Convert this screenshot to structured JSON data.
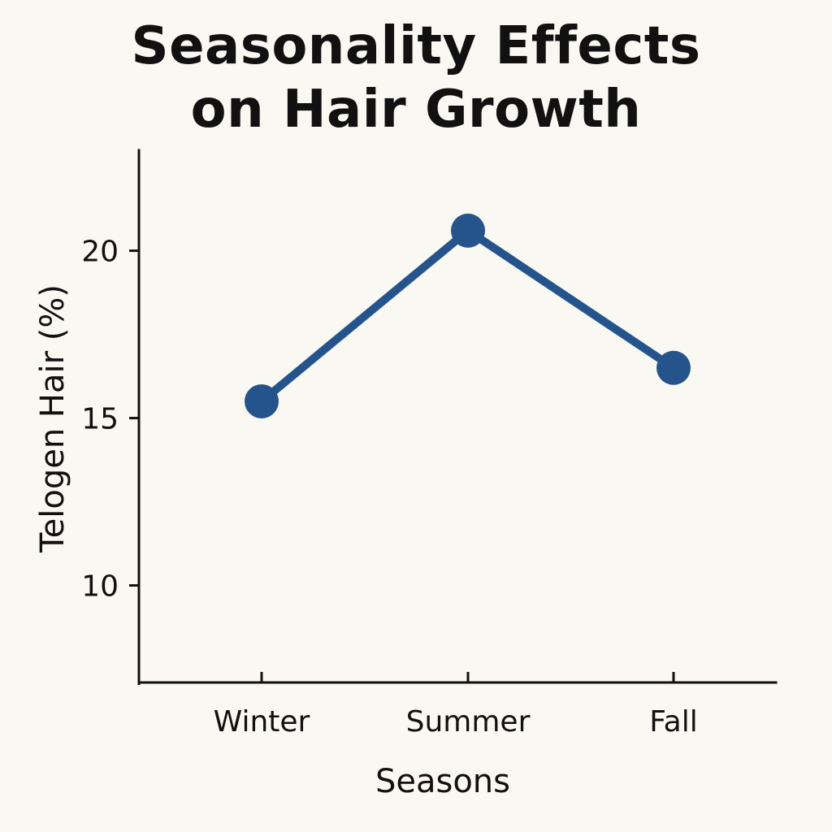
{
  "chart_data": {
    "type": "line",
    "title_lines": [
      "Seasonality Effects",
      "on Hair Growth"
    ],
    "xlabel": "Seasons",
    "ylabel": "Telogen Hair (%)",
    "categories": [
      "Winter",
      "Summer",
      "Fall"
    ],
    "series": [
      {
        "values": [
          15.5,
          20.6,
          16.5
        ]
      }
    ],
    "yticks": [
      10,
      15,
      20
    ],
    "ylim": [
      7.1,
      23.0
    ],
    "grid": false,
    "legend": "none",
    "colors": {
      "line": "#25548c",
      "axis": "#111111",
      "background": "#faf8f2"
    }
  }
}
